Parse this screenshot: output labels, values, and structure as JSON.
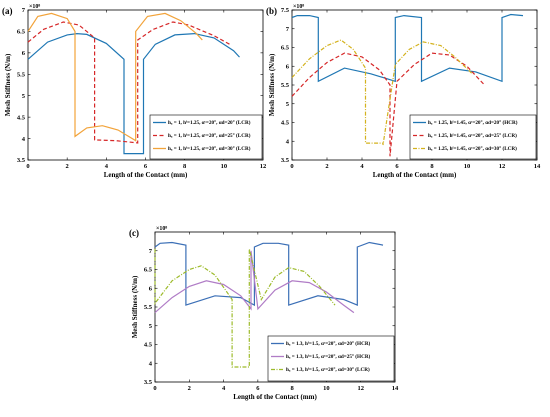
{
  "chart_data": [
    {
      "type": "line",
      "panel_label": "(a)",
      "xlabel": "Length of the Contact (mm)",
      "ylabel": "Mesh Stiffness (N/m)",
      "exponent": "×10⁸",
      "xlim": [
        0,
        12
      ],
      "ylim": [
        3.5,
        7
      ],
      "xticks": [
        "0",
        "2",
        "4",
        "6",
        "8",
        "10",
        "12"
      ],
      "yticks": [
        "3.5",
        "4",
        "4.5",
        "5",
        "5.5",
        "6",
        "6.5",
        "7"
      ],
      "grid": false,
      "legend_position": "bottom-right",
      "series": [
        {
          "name": "hₐ = 1, hᶠ=1.25, αᶜ=20°, αd=20° (LCR)",
          "color": "#1f77b4",
          "dash": "solid",
          "x": [
            0,
            1,
            2,
            2.5,
            3,
            4,
            4.9,
            4.9,
            5.9,
            5.9,
            6.5,
            7.5,
            8.5,
            9.5,
            10.5,
            10.8
          ],
          "y": [
            5.85,
            6.25,
            6.42,
            6.45,
            6.43,
            6.22,
            5.85,
            3.65,
            3.65,
            5.85,
            6.2,
            6.42,
            6.45,
            6.35,
            6.05,
            5.9
          ]
        },
        {
          "name": "hₐ = 1, hᶠ=1.25, αᶜ=20°, αd=25° (LCR)",
          "color": "#d62728",
          "dash": "dashed",
          "x": [
            0,
            0.8,
            1.8,
            2.6,
            3.4,
            3.4,
            4.5,
            5.6,
            5.6,
            6.4,
            7.4,
            8.2,
            9.5,
            10.3
          ],
          "y": [
            6.25,
            6.55,
            6.72,
            6.65,
            6.35,
            3.97,
            3.95,
            3.9,
            6.3,
            6.55,
            6.72,
            6.65,
            6.4,
            6.2
          ]
        },
        {
          "name": "hₐ = 1, hᶠ=1.25, αᶜ=20°, αd=30° (LCR)",
          "color": "#f2a33a",
          "dash": "solid",
          "x": [
            0,
            0.5,
            1.2,
            2,
            2.4,
            2.4,
            3,
            3.8,
            4.6,
            5.5,
            5.5,
            6.1,
            7,
            7.8,
            8.6,
            8.9
          ],
          "y": [
            6.5,
            6.85,
            6.92,
            6.8,
            6.5,
            4.05,
            4.25,
            4.3,
            4.2,
            3.95,
            6.5,
            6.85,
            6.92,
            6.75,
            6.45,
            6.3
          ]
        }
      ]
    },
    {
      "type": "line",
      "panel_label": "(b)",
      "xlabel": "Length of the Contact (mm)",
      "ylabel": "Mesh Stiffness (N/m)",
      "exponent": "×10⁸",
      "xlim": [
        0,
        14
      ],
      "ylim": [
        3.5,
        7.5
      ],
      "xticks": [
        "0",
        "2",
        "4",
        "6",
        "8",
        "10",
        "12",
        "14"
      ],
      "yticks": [
        "3.5",
        "4",
        "4.5",
        "5",
        "5.5",
        "6",
        "6.5",
        "7",
        "7.5"
      ],
      "grid": false,
      "legend_position": "bottom-right",
      "series": [
        {
          "name": "hₐ = 1.25, hᶠ=1.45, αᶜ=20°, αd=20° (HCR)",
          "color": "#1f77b4",
          "dash": "solid",
          "x": [
            0,
            0.3,
            1,
            1.5,
            1.5,
            3,
            4.5,
            5.9,
            5.9,
            6.4,
            7.4,
            7.4,
            9,
            10.5,
            12,
            12,
            12.5,
            13.2
          ],
          "y": [
            7.3,
            7.35,
            7.35,
            7.3,
            5.6,
            5.95,
            5.8,
            5.6,
            7.3,
            7.35,
            7.3,
            5.6,
            5.95,
            5.85,
            5.6,
            7.3,
            7.38,
            7.35
          ]
        },
        {
          "name": "hₐ = 1.25, hᶠ=1.45, αᶜ=20°, αd=25° (LCR)",
          "color": "#d62728",
          "dash": "dashed",
          "x": [
            0,
            1,
            2,
            3,
            4,
            5,
            5.6,
            5.6,
            6,
            7,
            8,
            9,
            10,
            11
          ],
          "y": [
            5.2,
            5.7,
            6.1,
            6.35,
            6.25,
            5.9,
            5.5,
            3.6,
            5.6,
            6.05,
            6.35,
            6.3,
            6.0,
            5.5
          ]
        },
        {
          "name": "hₐ = 1.25, hᶠ=1.45, αᶜ=20°, αd=30° (LCR)",
          "color": "#d4b21e",
          "dash": "dashdot",
          "x": [
            0,
            1,
            2,
            2.8,
            3.5,
            4.2,
            4.2,
            5.2,
            5.2,
            5.9,
            6.7,
            7.5,
            8.5,
            9.3,
            10.3
          ],
          "y": [
            5.7,
            6.2,
            6.55,
            6.7,
            6.45,
            5.95,
            3.95,
            3.95,
            3.9,
            6.05,
            6.45,
            6.65,
            6.55,
            6.25,
            5.8
          ]
        }
      ]
    },
    {
      "type": "line",
      "panel_label": "(c)",
      "xlabel": "Length of the Contact (mm)",
      "ylabel": "Mesh Stiffness (N/m)",
      "exponent": "×10⁸",
      "xlim": [
        0,
        14
      ],
      "ylim": [
        3.5,
        7.5
      ],
      "xticks": [
        "0",
        "2",
        "4",
        "6",
        "8",
        "10",
        "12",
        "14"
      ],
      "yticks": [
        "3.5",
        "4",
        "4.5",
        "5",
        "5.5",
        "6",
        "6.5",
        "7"
      ],
      "grid": false,
      "legend_position": "bottom-right",
      "series": [
        {
          "name": "hₐ = 1.3, hᶠ=1.5, αᶜ=20°, αd=20° (HCR)",
          "color": "#3b6fb6",
          "dash": "solid",
          "x": [
            0,
            0.3,
            1,
            1.8,
            1.8,
            3.5,
            5,
            5.8,
            5.8,
            6.3,
            7.2,
            7.8,
            7.8,
            9.5,
            11,
            11.8,
            11.8,
            12.5,
            13.3
          ],
          "y": [
            7.1,
            7.2,
            7.22,
            7.15,
            5.55,
            5.8,
            5.75,
            5.55,
            7.1,
            7.2,
            7.2,
            7.15,
            5.55,
            5.8,
            5.7,
            5.55,
            7.1,
            7.22,
            7.15
          ]
        },
        {
          "name": "hₐ = 1.3, hᶠ=1.5, αᶜ=20°, αd=25° (HCR)",
          "color": "#b07cc6",
          "dash": "solid",
          "x": [
            0,
            1,
            2,
            3,
            4,
            5,
            5.6,
            5.6,
            6,
            7,
            8,
            9,
            10,
            11,
            11.6
          ],
          "y": [
            5.35,
            5.75,
            6.05,
            6.2,
            6.1,
            5.8,
            5.45,
            7.0,
            5.45,
            5.95,
            6.2,
            6.15,
            5.9,
            5.55,
            5.35
          ]
        },
        {
          "name": "hₐ = 1.3, hᶠ=1.5, αᶜ=20°, αd=30° (LCR)",
          "color": "#9dbb2b",
          "dash": "dashdot",
          "x": [
            0,
            0,
            1,
            2,
            2.7,
            3.5,
            4.5,
            4.5,
            5.5,
            5.5,
            6.2,
            7,
            7.8,
            8.7,
            9.6,
            10.5
          ],
          "y": [
            7.05,
            5.6,
            6.2,
            6.5,
            6.6,
            6.35,
            5.7,
            3.9,
            3.9,
            7.05,
            5.7,
            6.3,
            6.55,
            6.45,
            6.05,
            5.55
          ]
        }
      ]
    }
  ]
}
